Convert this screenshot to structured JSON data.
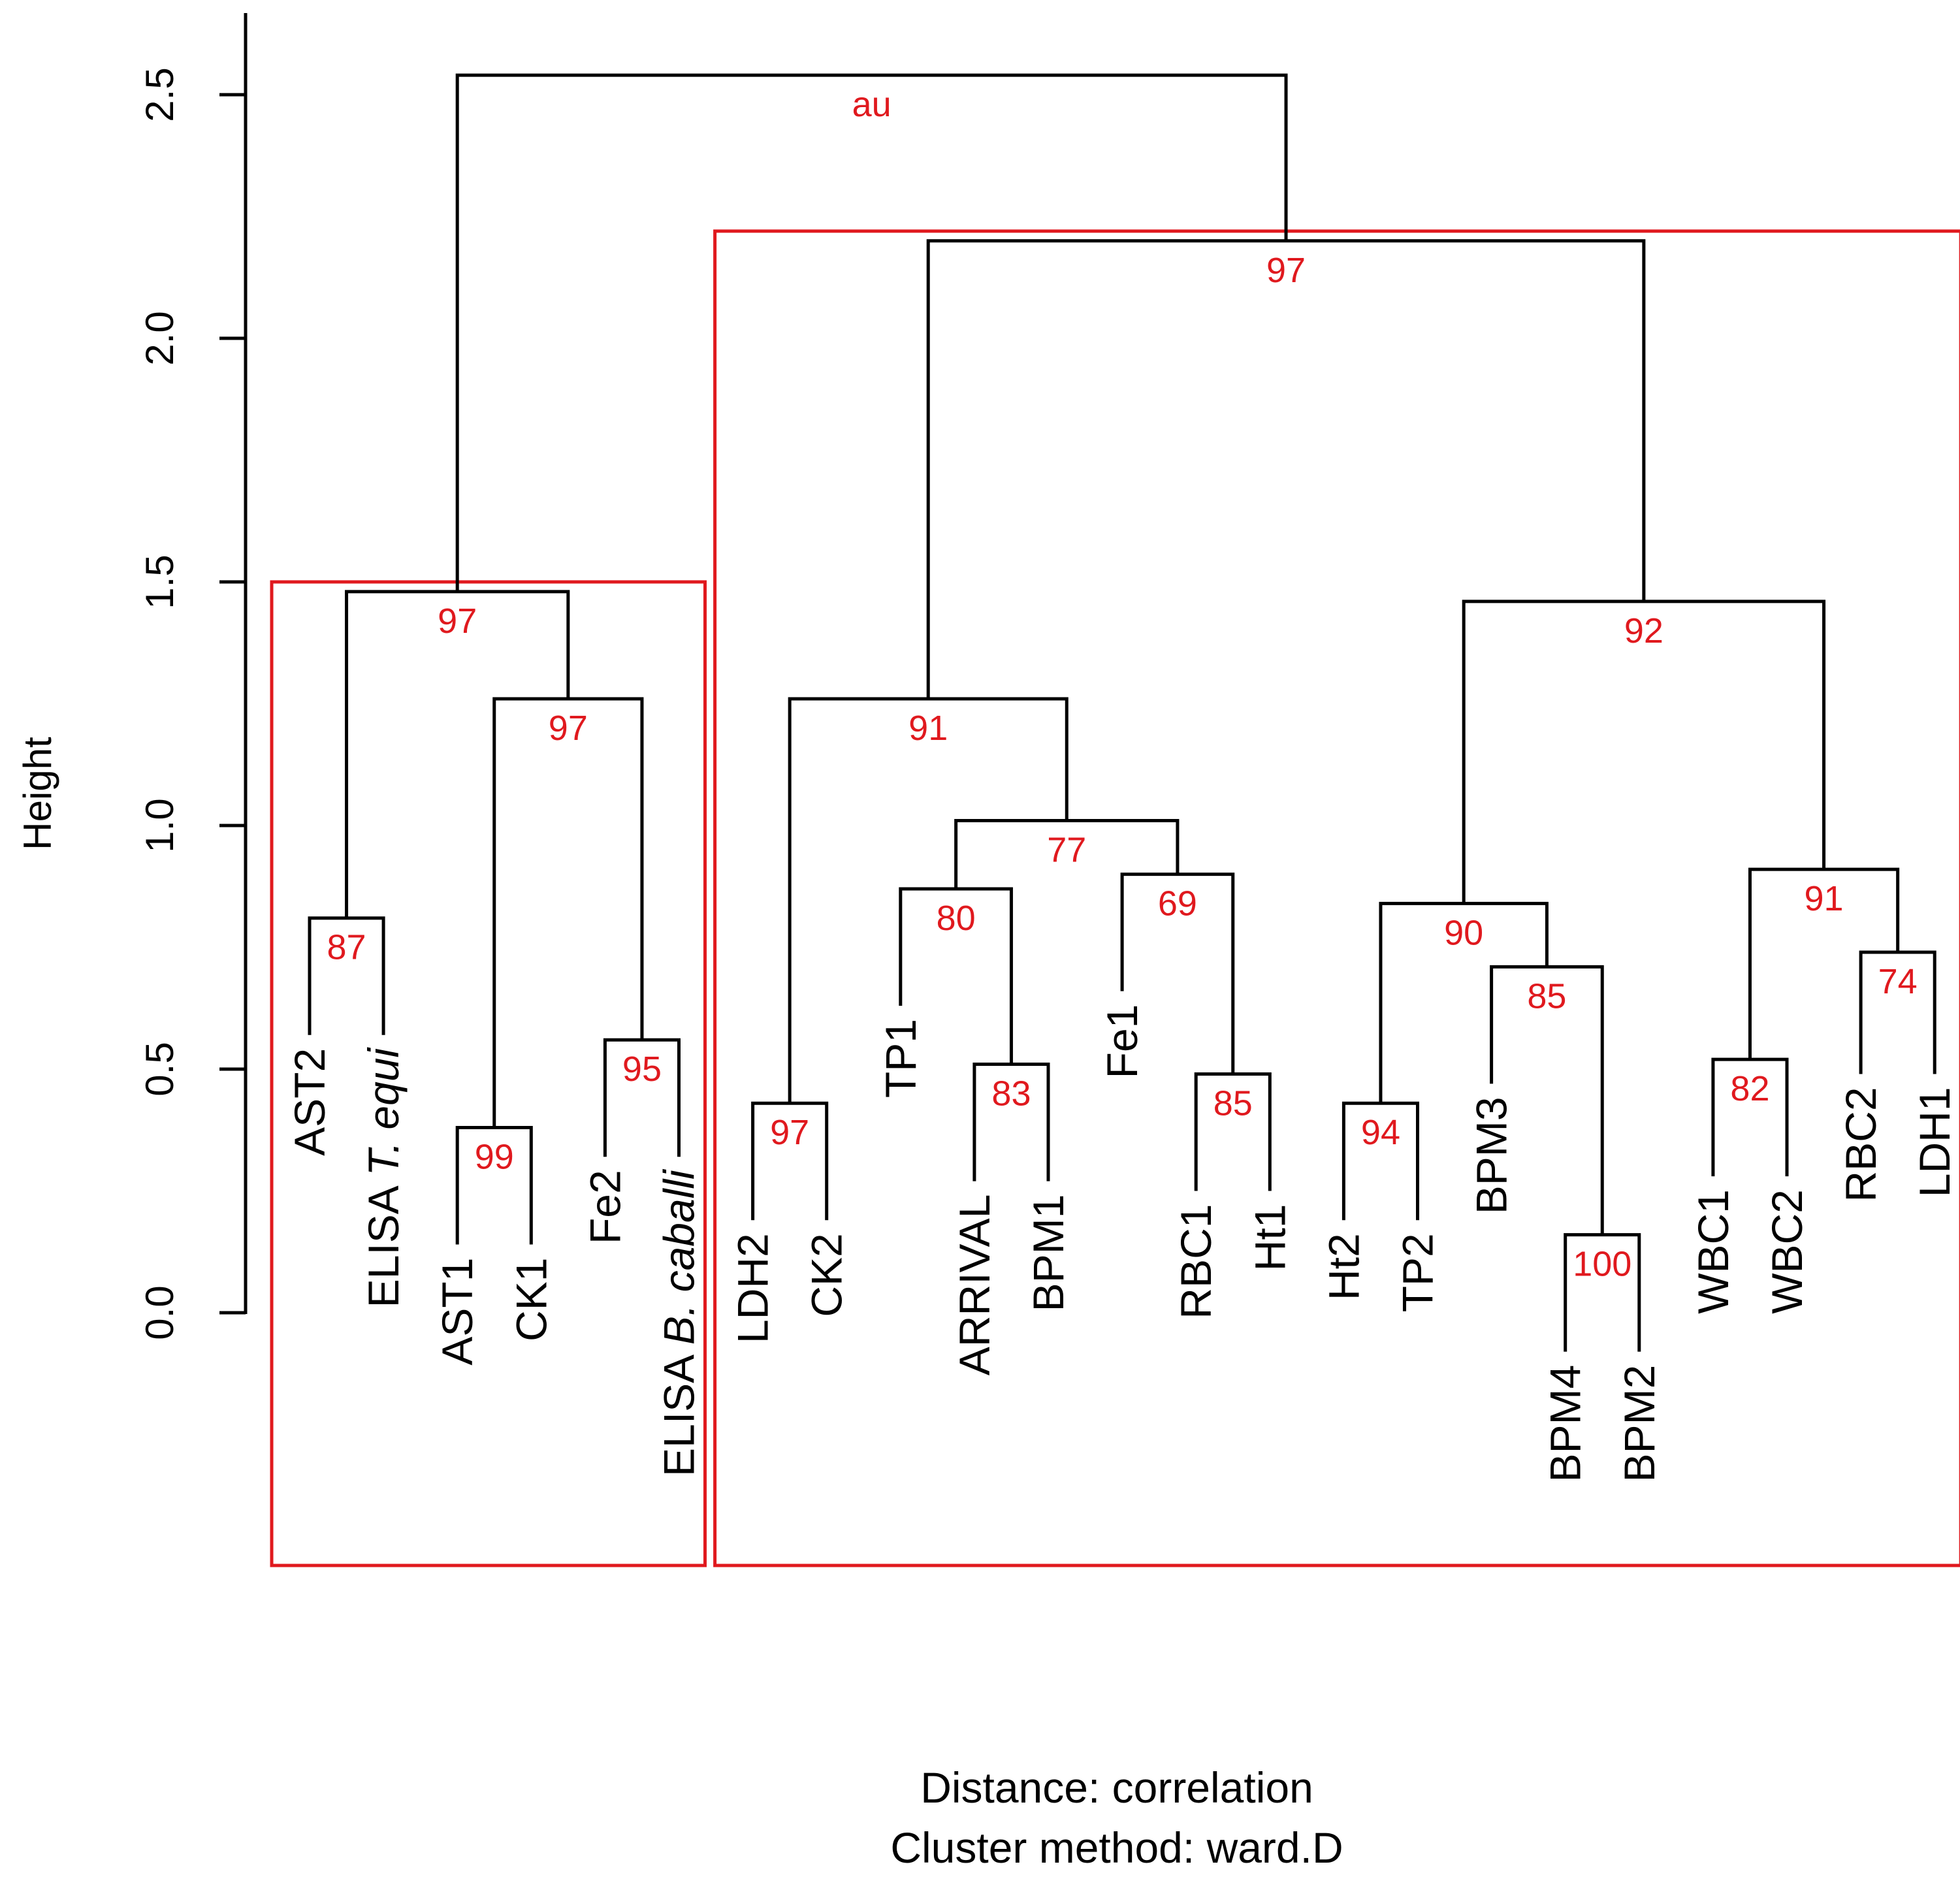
{
  "chart_data": {
    "type": "dendrogram",
    "ylabel": "Height",
    "ylim": [
      0,
      2.6
    ],
    "y_ticks": [
      0.0,
      0.5,
      1.0,
      1.5,
      2.0,
      2.5
    ],
    "y_tick_labels": [
      "0.0",
      "0.5",
      "1.0",
      "1.5",
      "2.0",
      "2.5"
    ],
    "au_title": "au",
    "sub_labels": [
      "Distance:  correlation",
      "Cluster method: ward.D"
    ],
    "leaves": [
      {
        "id": "AST2",
        "label": "AST2",
        "height": 0.57
      },
      {
        "id": "ELISA_Tequi",
        "label": "ELISA ",
        "italic": "T. equi",
        "height": 0.57
      },
      {
        "id": "AST1",
        "label": "AST1",
        "height": 0.14
      },
      {
        "id": "CK1",
        "label": "CK1",
        "height": 0.14
      },
      {
        "id": "Fe2",
        "label": "Fe2",
        "height": 0.32
      },
      {
        "id": "ELISA_Bcaballi",
        "label": "ELISA ",
        "italic": "B. caballi",
        "height": 0.32
      },
      {
        "id": "LDH2",
        "label": "LDH2",
        "height": 0.19
      },
      {
        "id": "CK2",
        "label": "CK2",
        "height": 0.19
      },
      {
        "id": "TP1",
        "label": "TP1",
        "height": 0.63
      },
      {
        "id": "ARRIVAL",
        "label": "ARRIVAL",
        "height": 0.27
      },
      {
        "id": "BPM1",
        "label": "BPM1",
        "height": 0.27
      },
      {
        "id": "Fe1",
        "label": "Fe1",
        "height": 0.66
      },
      {
        "id": "RBC1",
        "label": "RBC1",
        "height": 0.25
      },
      {
        "id": "Ht1",
        "label": "Ht1",
        "height": 0.25
      },
      {
        "id": "Ht2",
        "label": "Ht2",
        "height": 0.19
      },
      {
        "id": "TP2",
        "label": "TP2",
        "height": 0.19
      },
      {
        "id": "BPM3",
        "label": "BPM3",
        "height": 0.47
      },
      {
        "id": "BPM4",
        "label": "BPM4",
        "height": -0.08
      },
      {
        "id": "BPM2",
        "label": "BPM2",
        "height": -0.08
      },
      {
        "id": "WBC1",
        "label": "WBC1",
        "height": 0.28
      },
      {
        "id": "WBC2",
        "label": "WBC2",
        "height": 0.28
      },
      {
        "id": "RBC2",
        "label": "RBC2",
        "height": 0.49
      },
      {
        "id": "LDH1",
        "label": "LDH1",
        "height": 0.49
      }
    ],
    "merges": [
      {
        "id": "m_ast2_tequi",
        "left": "AST2",
        "right": "ELISA_Tequi",
        "height": 0.81,
        "au": 87
      },
      {
        "id": "m_ast1_ck1",
        "left": "AST1",
        "right": "CK1",
        "height": 0.38,
        "au": 99
      },
      {
        "id": "m_fe2_bcab",
        "left": "Fe2",
        "right": "ELISA_Bcaballi",
        "height": 0.56,
        "au": 95
      },
      {
        "id": "m_ast1ck1_fe2",
        "left": "m_ast1_ck1",
        "right": "m_fe2_bcab",
        "height": 1.26,
        "au": 97
      },
      {
        "id": "m_left",
        "left": "m_ast2_tequi",
        "right": "m_ast1ck1_fe2",
        "height": 1.48,
        "au": 97
      },
      {
        "id": "m_ldh2_ck2",
        "left": "LDH2",
        "right": "CK2",
        "height": 0.43,
        "au": 97
      },
      {
        "id": "m_arr_bpm1",
        "left": "ARRIVAL",
        "right": "BPM1",
        "height": 0.51,
        "au": 83
      },
      {
        "id": "m_tp1",
        "left": "TP1",
        "right": "m_arr_bpm1",
        "height": 0.87,
        "au": 80
      },
      {
        "id": "m_rbc1_ht1",
        "left": "RBC1",
        "right": "Ht1",
        "height": 0.49,
        "au": 85
      },
      {
        "id": "m_fe1",
        "left": "Fe1",
        "right": "m_rbc1_ht1",
        "height": 0.9,
        "au": 69
      },
      {
        "id": "m_77",
        "left": "m_tp1",
        "right": "m_fe1",
        "height": 1.01,
        "au": 77
      },
      {
        "id": "m_91a",
        "left": "m_ldh2_ck2",
        "right": "m_77",
        "height": 1.26,
        "au": 91
      },
      {
        "id": "m_ht2_tp2",
        "left": "Ht2",
        "right": "TP2",
        "height": 0.43,
        "au": 94
      },
      {
        "id": "m_bpm4_bpm2",
        "left": "BPM4",
        "right": "BPM2",
        "height": 0.16,
        "au": 100
      },
      {
        "id": "m_bpm3",
        "left": "BPM3",
        "right": "m_bpm4_bpm2",
        "height": 0.71,
        "au": 85
      },
      {
        "id": "m_90",
        "left": "m_ht2_tp2",
        "right": "m_bpm3",
        "height": 0.84,
        "au": 90
      },
      {
        "id": "m_wbc",
        "left": "WBC1",
        "right": "WBC2",
        "height": 0.52,
        "au": 82
      },
      {
        "id": "m_rbc2_ldh1",
        "left": "RBC2",
        "right": "LDH1",
        "height": 0.74,
        "au": 74
      },
      {
        "id": "m_91b",
        "left": "m_wbc",
        "right": "m_rbc2_ldh1",
        "height": 0.91,
        "au": 91
      },
      {
        "id": "m_92",
        "left": "m_90",
        "right": "m_91b",
        "height": 1.46,
        "au": 92
      },
      {
        "id": "m_right",
        "left": "m_91a",
        "right": "m_92",
        "height": 2.2,
        "au": 97
      },
      {
        "id": "m_root",
        "left": "m_left",
        "right": "m_right",
        "height": 2.54,
        "au": null
      }
    ],
    "clusters": [
      {
        "name": "cluster-left",
        "first_leaf": "AST2",
        "last_leaf": "ELISA_Bcaballi",
        "top_height": 1.5
      },
      {
        "name": "cluster-right",
        "first_leaf": "LDH2",
        "last_leaf": "LDH1",
        "top_height": 2.22
      }
    ]
  }
}
